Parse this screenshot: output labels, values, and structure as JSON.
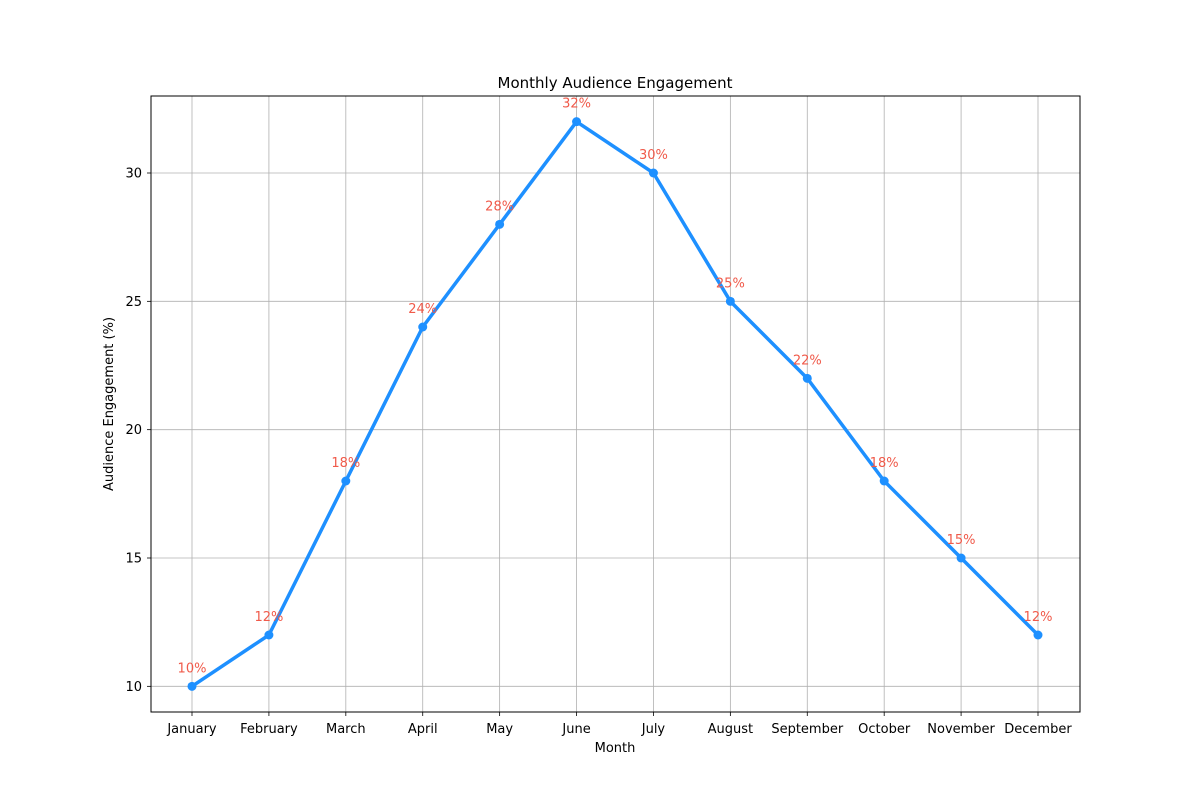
{
  "chart_data": {
    "type": "line",
    "title": "Monthly Audience Engagement",
    "xlabel": "Month",
    "ylabel": "Audience Engagement (%)",
    "categories": [
      "January",
      "February",
      "March",
      "April",
      "May",
      "June",
      "July",
      "August",
      "September",
      "October",
      "November",
      "December"
    ],
    "series": [
      {
        "values": [
          10,
          12,
          18,
          24,
          28,
          32,
          30,
          25,
          22,
          18,
          15,
          12
        ],
        "color": "#1e90ff",
        "marker": "circle"
      }
    ],
    "data_labels": [
      "10%",
      "12%",
      "18%",
      "24%",
      "28%",
      "32%",
      "30%",
      "25%",
      "22%",
      "18%",
      "15%",
      "12%"
    ],
    "data_label_color": "#f05a4a",
    "ylim": [
      9,
      33
    ],
    "yticks": [
      10,
      15,
      20,
      25,
      30
    ],
    "grid": true,
    "legend": "none"
  }
}
